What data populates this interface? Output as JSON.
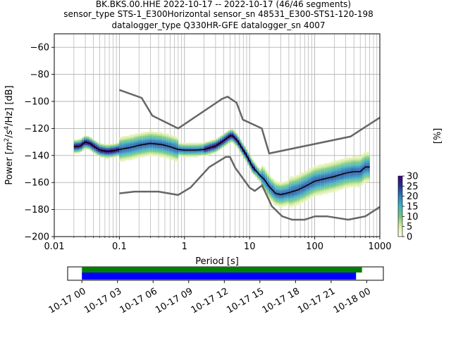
{
  "titles": [
    "BK.BKS.00.HHE   2022-10-17 -- 2022-10-17  (46/46 segments)",
    "sensor_type STS-1_E300Horizontal sensor_sn 48531_E300-STS1-120-198",
    "datalogger_type Q330HR-GFE datalogger_sn 4007"
  ],
  "chart_data": {
    "type": "heatmap",
    "xlabel": "Period [s]",
    "ylabel_parts": [
      "Power [",
      "m",
      "2",
      "/",
      "s",
      "4",
      "/Hz] [dB]"
    ],
    "x_scale": "log",
    "xlim": [
      0.01,
      1000
    ],
    "ylim": [
      -200,
      -50
    ],
    "x_ticks": [
      0.01,
      0.1,
      1,
      10,
      100,
      1000
    ],
    "x_tick_labels": [
      "0.01",
      "0.1",
      "1",
      "10",
      "100",
      "1000"
    ],
    "y_ticks": [
      -200,
      -180,
      -160,
      -140,
      -120,
      -100,
      -80,
      -60
    ],
    "y_tick_labels": [
      "−200",
      "−180",
      "−160",
      "−140",
      "−120",
      "−100",
      "−80",
      "−60"
    ],
    "grid": true,
    "colorbar": {
      "label": "[%]",
      "range": [
        0,
        30
      ],
      "ticks": [
        0,
        5,
        10,
        15,
        20,
        25,
        30
      ],
      "tick_labels": [
        "0",
        "5",
        "10",
        "15",
        "20",
        "25",
        "30"
      ],
      "colors": [
        "#ffffe5",
        "#d9f0a3",
        "#78c679",
        "#41b6c4",
        "#2c7fb8",
        "#253494",
        "#3f007d"
      ]
    },
    "noise_model_high": {
      "periods": [
        0.1,
        0.22,
        0.32,
        0.8,
        3.8,
        4.6,
        6.3,
        7.9,
        15.4,
        20,
        354.8,
        1000
      ],
      "power_db": [
        -91.5,
        -97.4,
        -110.5,
        -120,
        -98,
        -96.5,
        -101,
        -113.5,
        -120,
        -138.5,
        -126,
        -112
      ]
    },
    "noise_model_low": {
      "periods": [
        0.1,
        0.17,
        0.4,
        0.8,
        1.24,
        2.4,
        4.3,
        5,
        6,
        10,
        12,
        15.6,
        21.9,
        31.6,
        45,
        70,
        101,
        154,
        328,
        600,
        1000
      ],
      "power_db": [
        -168,
        -166.7,
        -166.7,
        -169.2,
        -163.7,
        -148.6,
        -141.1,
        -141.1,
        -149,
        -163.8,
        -166.2,
        -162.1,
        -177.5,
        -185,
        -187.5,
        -187.5,
        -185,
        -185,
        -187.5,
        -185,
        -178
      ]
    },
    "mean_curve": {
      "periods": [
        0.02,
        0.025,
        0.03,
        0.035,
        0.04,
        0.05,
        0.065,
        0.08,
        0.1,
        0.15,
        0.2,
        0.3,
        0.45,
        0.6,
        0.8,
        1.0,
        1.5,
        2.0,
        3.0,
        4.0,
        5.0,
        5.5,
        6.5,
        7.5,
        9.0,
        11,
        14,
        17,
        20,
        25,
        30,
        40,
        55,
        70,
        100,
        150,
        200,
        300,
        400,
        500,
        600,
        700
      ],
      "power_db": [
        -133.5,
        -133,
        -130,
        -131,
        -133,
        -136,
        -137,
        -136.5,
        -135.5,
        -134,
        -132.5,
        -131,
        -132,
        -133.5,
        -135.5,
        -136,
        -136,
        -135.5,
        -133,
        -129,
        -125.5,
        -125.5,
        -129,
        -134,
        -140,
        -148,
        -154,
        -158,
        -163,
        -168,
        -169,
        -167.5,
        -165.5,
        -163,
        -159,
        -157,
        -155.5,
        -153,
        -152,
        -152,
        -148.5,
        -148.5
      ]
    },
    "time_axis": {
      "tick_labels": [
        "10-17 00",
        "10-17 03",
        "10-17 06",
        "10-17 09",
        "10-17 12",
        "10-17 15",
        "10-17 18",
        "10-17 21",
        "10-18 00"
      ],
      "range_hours": [
        -1.2,
        25.4
      ],
      "data_coverage_hours": [
        0,
        23.6
      ],
      "gap_coverage_hours": [
        0,
        23.1
      ],
      "colors": {
        "data": "#008000",
        "segments": "#0000ff"
      }
    }
  }
}
